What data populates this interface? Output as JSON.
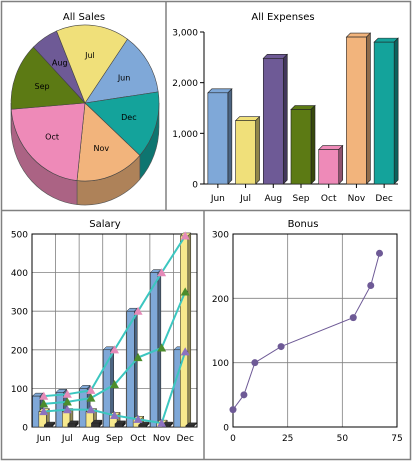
{
  "chart_data": [
    {
      "type": "pie",
      "title": "All Sales",
      "categories": [
        "Jun",
        "Dec",
        "Nov",
        "Oct",
        "Sep",
        "Aug",
        "Jul"
      ],
      "values": [
        13,
        14,
        15,
        22,
        14,
        6,
        16
      ],
      "colors": [
        "#7fa8d8",
        "#14a39b",
        "#f2b47c",
        "#ee8ab8",
        "#5c7a14",
        "#6e5a96",
        "#f0e07a"
      ]
    },
    {
      "type": "bar",
      "title": "All Expenses",
      "categories": [
        "Jun",
        "Jul",
        "Aug",
        "Sep",
        "Oct",
        "Nov",
        "Dec"
      ],
      "values": [
        1800,
        1250,
        2480,
        1470,
        680,
        2900,
        2800
      ],
      "colors": [
        "#7fa8d8",
        "#f0e07a",
        "#6e5a96",
        "#5c7a14",
        "#ee8ab8",
        "#f2b47c",
        "#14a39b"
      ],
      "ylim": [
        0,
        3000
      ],
      "yticks": [
        "0",
        "1,000",
        "2,000",
        "3,000"
      ],
      "ytick_values": [
        0,
        1000,
        2000,
        3000
      ],
      "grid": false
    },
    {
      "type": "bar",
      "title": "Salary",
      "categories": [
        "Jun",
        "Jul",
        "Aug",
        "Sep",
        "Oct",
        "Nov",
        "Dec"
      ],
      "ylim": [
        0,
        500
      ],
      "yticks": [
        "0",
        "100",
        "200",
        "300",
        "400",
        "500"
      ],
      "ytick_values": [
        0,
        100,
        200,
        300,
        400,
        500
      ],
      "grid": true,
      "bar_series": [
        {
          "color": "#7fa8d8",
          "values": [
            80,
            90,
            100,
            200,
            300,
            400,
            200
          ]
        },
        {
          "color": "#f7e98d",
          "values": [
            40,
            40,
            40,
            30,
            20,
            10,
            495
          ]
        },
        {
          "color": "#333333",
          "values": [
            5,
            8,
            10,
            8,
            5,
            5,
            3
          ]
        }
      ],
      "line_series": [
        {
          "color": "#3cc6c0",
          "marker": "triangle",
          "marker_color": "#e58ab8",
          "values": [
            80,
            85,
            95,
            200,
            300,
            400,
            495
          ]
        },
        {
          "color": "#3cc6c0",
          "marker": "triangle",
          "marker_color": "#4c8c2c",
          "values": [
            60,
            65,
            75,
            110,
            180,
            205,
            350
          ]
        },
        {
          "color": "#3cc6c0",
          "marker": "triangle",
          "marker_color": "#8c72c0",
          "values": [
            40,
            45,
            45,
            30,
            20,
            10,
            195
          ]
        }
      ]
    },
    {
      "type": "scatter",
      "title": "Bonus",
      "x": [
        0,
        5,
        10,
        22,
        55,
        63,
        67
      ],
      "y": [
        27,
        50,
        100,
        125,
        170,
        220,
        270
      ],
      "xlim": [
        0,
        75
      ],
      "ylim": [
        0,
        300
      ],
      "xticks": [
        "0",
        "25",
        "50",
        "75"
      ],
      "xtick_values": [
        0,
        25,
        50,
        75
      ],
      "yticks": [
        "0",
        "100",
        "200",
        "300"
      ],
      "ytick_values": [
        0,
        100,
        200,
        300
      ],
      "grid": true,
      "color": "#6e5a96"
    }
  ]
}
